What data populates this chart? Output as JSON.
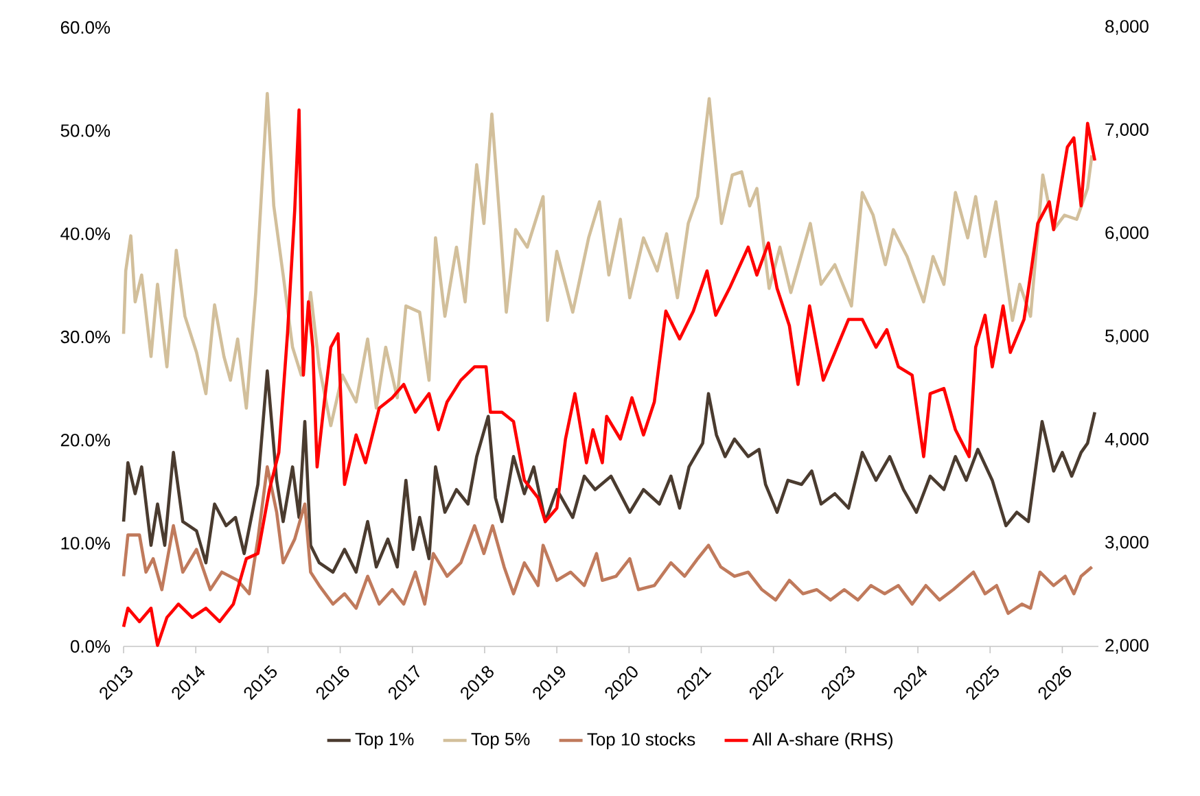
{
  "chart_data": {
    "type": "line",
    "legend": "bottom",
    "xlim": [
      2013,
      2026.5
    ],
    "xticks": [
      2013,
      2014,
      2015,
      2016,
      2017,
      2018,
      2019,
      2020,
      2021,
      2022,
      2023,
      2024,
      2025,
      2026
    ],
    "ylim": [
      0,
      60
    ],
    "yticks": [
      {
        "value": 0,
        "label": "0.0%"
      },
      {
        "value": 10,
        "label": "10.0%"
      },
      {
        "value": 20,
        "label": "20.0%"
      },
      {
        "value": 30,
        "label": "30.0%"
      },
      {
        "value": 40,
        "label": "40.0%"
      },
      {
        "value": 50,
        "label": "50.0%"
      },
      {
        "value": 60,
        "label": "60.0%"
      }
    ],
    "y2lim": [
      2000,
      8000
    ],
    "y2ticks": [
      {
        "value": 2000,
        "label": "2,000"
      },
      {
        "value": 3000,
        "label": "3,000"
      },
      {
        "value": 4000,
        "label": "4,000"
      },
      {
        "value": 5000,
        "label": "5,000"
      },
      {
        "value": 6000,
        "label": "6,000"
      },
      {
        "value": 7000,
        "label": "7,000"
      },
      {
        "value": 8000,
        "label": "8,000"
      }
    ],
    "series": [
      {
        "name": "Top 1%",
        "color": "#4a3b2f",
        "x": [
          2013.0,
          2013.06,
          2013.16,
          2013.25,
          2013.38,
          2013.47,
          2013.57,
          2013.69,
          2013.82,
          2014.01,
          2014.14,
          2014.26,
          2014.42,
          2014.55,
          2014.67,
          2014.86,
          2014.99,
          2015.12,
          2015.21,
          2015.34,
          2015.43,
          2015.51,
          2015.59,
          2015.71,
          2015.9,
          2016.06,
          2016.22,
          2016.38,
          2016.5,
          2016.66,
          2016.79,
          2016.91,
          2017.01,
          2017.1,
          2017.23,
          2017.32,
          2017.45,
          2017.61,
          2017.77,
          2017.89,
          2018.05,
          2018.15,
          2018.24,
          2018.4,
          2018.55,
          2018.68,
          2018.84,
          2019.0,
          2019.22,
          2019.38,
          2019.53,
          2019.75,
          2020.01,
          2020.2,
          2020.42,
          2020.58,
          2020.7,
          2020.83,
          2021.02,
          2021.1,
          2021.21,
          2021.33,
          2021.46,
          2021.65,
          2021.8,
          2021.89,
          2022.05,
          2022.2,
          2022.39,
          2022.53,
          2022.66,
          2022.85,
          2023.04,
          2023.23,
          2023.42,
          2023.61,
          2023.8,
          2023.98,
          2024.17,
          2024.36,
          2024.52,
          2024.67,
          2024.83,
          2025.03,
          2025.22,
          2025.37,
          2025.53,
          2025.72,
          2025.88,
          2026.0,
          2026.13,
          2026.26,
          2026.35,
          2026.45
        ],
        "values": [
          12.1,
          17.8,
          14.8,
          17.4,
          9.8,
          13.8,
          9.8,
          18.8,
          12.1,
          11.2,
          8.1,
          13.8,
          11.7,
          12.5,
          9.0,
          15.7,
          26.7,
          16.1,
          12.1,
          17.4,
          12.5,
          21.8,
          9.8,
          8.1,
          7.2,
          9.4,
          7.2,
          12.1,
          7.7,
          10.4,
          7.7,
          16.1,
          9.4,
          12.5,
          8.5,
          17.4,
          13.0,
          15.2,
          13.8,
          18.4,
          22.3,
          14.4,
          12.1,
          18.4,
          14.8,
          17.4,
          12.1,
          15.2,
          12.5,
          16.5,
          15.2,
          16.5,
          13.0,
          15.2,
          13.8,
          16.5,
          13.4,
          17.4,
          19.7,
          24.5,
          20.5,
          18.4,
          20.1,
          18.4,
          19.1,
          15.7,
          13.0,
          16.1,
          15.7,
          17.0,
          13.8,
          14.8,
          13.4,
          18.8,
          16.1,
          18.4,
          15.2,
          13.0,
          16.5,
          15.2,
          18.4,
          16.1,
          19.1,
          16.1,
          11.7,
          13.0,
          12.1,
          21.8,
          17.0,
          18.8,
          16.5,
          18.8,
          19.7,
          22.7
        ]
      },
      {
        "name": "Top 5%",
        "color": "#d2bf9b",
        "x": [
          2013.0,
          2013.03,
          2013.1,
          2013.16,
          2013.25,
          2013.38,
          2013.47,
          2013.6,
          2013.73,
          2013.85,
          2014.01,
          2014.14,
          2014.26,
          2014.39,
          2014.48,
          2014.58,
          2014.7,
          2014.83,
          2014.99,
          2015.08,
          2015.21,
          2015.34,
          2015.46,
          2015.59,
          2015.71,
          2015.87,
          2016.03,
          2016.22,
          2016.38,
          2016.5,
          2016.63,
          2016.79,
          2016.91,
          2017.1,
          2017.23,
          2017.32,
          2017.45,
          2017.61,
          2017.73,
          2017.89,
          2017.99,
          2018.1,
          2018.21,
          2018.3,
          2018.43,
          2018.59,
          2018.81,
          2018.87,
          2019.0,
          2019.22,
          2019.44,
          2019.59,
          2019.72,
          2019.88,
          2020.01,
          2020.2,
          2020.39,
          2020.52,
          2020.67,
          2020.82,
          2020.95,
          2021.11,
          2021.2,
          2021.28,
          2021.43,
          2021.56,
          2021.67,
          2021.77,
          2021.94,
          2022.09,
          2022.24,
          2022.51,
          2022.66,
          2022.85,
          2023.08,
          2023.23,
          2023.38,
          2023.55,
          2023.66,
          2023.85,
          2024.08,
          2024.21,
          2024.36,
          2024.52,
          2024.69,
          2024.8,
          2024.93,
          2025.08,
          2025.22,
          2025.31,
          2025.41,
          2025.56,
          2025.73,
          2025.88,
          2026.03,
          2026.2,
          2026.35,
          2026.41
        ],
        "values": [
          30.3,
          36.4,
          39.8,
          33.4,
          36.0,
          28.1,
          35.1,
          27.1,
          38.4,
          32.0,
          28.5,
          24.5,
          33.1,
          28.1,
          25.8,
          29.8,
          23.1,
          34.3,
          53.6,
          42.7,
          36.0,
          29.0,
          26.3,
          34.3,
          27.1,
          21.4,
          26.3,
          23.7,
          29.8,
          23.1,
          29.0,
          24.1,
          33.0,
          32.4,
          25.8,
          39.6,
          32.0,
          38.7,
          33.4,
          46.7,
          41.0,
          51.6,
          41.4,
          32.4,
          40.4,
          38.7,
          43.6,
          31.6,
          38.3,
          32.4,
          39.6,
          43.1,
          36.0,
          41.4,
          33.8,
          39.6,
          36.4,
          40.0,
          33.8,
          41.0,
          43.6,
          53.1,
          46.7,
          41.0,
          45.7,
          46.0,
          42.7,
          44.4,
          34.7,
          38.7,
          34.3,
          41.0,
          35.1,
          37.0,
          33.0,
          44.0,
          41.8,
          37.0,
          40.4,
          37.8,
          33.4,
          37.8,
          35.1,
          44.0,
          39.6,
          43.6,
          37.8,
          43.1,
          36.0,
          31.6,
          35.1,
          32.0,
          45.7,
          40.4,
          41.8,
          41.4,
          44.4,
          47.6
        ]
      },
      {
        "name": "Top 10 stocks",
        "color": "#c07a5c",
        "x": [
          2013.0,
          2013.06,
          2013.22,
          2013.31,
          2013.41,
          2013.53,
          2013.69,
          2013.82,
          2014.01,
          2014.2,
          2014.36,
          2014.58,
          2014.74,
          2014.86,
          2014.99,
          2015.12,
          2015.21,
          2015.37,
          2015.51,
          2015.59,
          2015.71,
          2015.9,
          2016.06,
          2016.22,
          2016.38,
          2016.54,
          2016.72,
          2016.88,
          2017.04,
          2017.17,
          2017.29,
          2017.48,
          2017.67,
          2017.86,
          2017.99,
          2018.11,
          2018.27,
          2018.4,
          2018.55,
          2018.74,
          2018.81,
          2019.0,
          2019.19,
          2019.38,
          2019.55,
          2019.63,
          2019.82,
          2020.01,
          2020.13,
          2020.35,
          2020.58,
          2020.77,
          2020.95,
          2021.1,
          2021.27,
          2021.46,
          2021.65,
          2021.84,
          2022.03,
          2022.22,
          2022.41,
          2022.6,
          2022.79,
          2022.98,
          2023.17,
          2023.35,
          2023.54,
          2023.73,
          2023.92,
          2024.11,
          2024.3,
          2024.49,
          2024.77,
          2024.93,
          2025.09,
          2025.25,
          2025.44,
          2025.56,
          2025.69,
          2025.88,
          2026.04,
          2026.16,
          2026.26,
          2026.41
        ],
        "values": [
          6.8,
          10.8,
          10.8,
          7.2,
          8.5,
          5.5,
          11.7,
          7.2,
          9.4,
          5.5,
          7.2,
          6.4,
          5.1,
          10.4,
          17.4,
          13.0,
          8.1,
          10.4,
          13.8,
          7.2,
          5.9,
          4.1,
          5.1,
          3.7,
          6.8,
          4.1,
          5.5,
          4.1,
          7.2,
          4.1,
          9.0,
          6.8,
          8.1,
          11.7,
          9.0,
          11.7,
          7.7,
          5.1,
          8.1,
          5.9,
          9.8,
          6.4,
          7.2,
          5.9,
          9.0,
          6.4,
          6.8,
          8.5,
          5.5,
          5.9,
          8.1,
          6.8,
          8.5,
          9.8,
          7.7,
          6.8,
          7.2,
          5.5,
          4.5,
          6.4,
          5.1,
          5.5,
          4.5,
          5.5,
          4.5,
          5.9,
          5.1,
          5.9,
          4.1,
          5.9,
          4.5,
          5.5,
          7.2,
          5.1,
          5.9,
          3.2,
          4.1,
          3.7,
          7.2,
          5.9,
          6.8,
          5.1,
          6.8,
          7.7
        ]
      },
      {
        "name": "All A-share (RHS)",
        "color": "#ff0000",
        "axis": "y2",
        "x": [
          2013.0,
          2013.06,
          2013.22,
          2013.38,
          2013.47,
          2013.6,
          2013.76,
          2013.95,
          2014.14,
          2014.33,
          2014.52,
          2014.7,
          2014.86,
          2015.02,
          2015.15,
          2015.27,
          2015.37,
          2015.43,
          2015.49,
          2015.56,
          2015.62,
          2015.68,
          2015.78,
          2015.87,
          2015.97,
          2016.06,
          2016.22,
          2016.35,
          2016.54,
          2016.72,
          2016.88,
          2017.04,
          2017.23,
          2017.36,
          2017.48,
          2017.67,
          2017.86,
          2018.02,
          2018.08,
          2018.24,
          2018.4,
          2018.55,
          2018.74,
          2018.84,
          2019.0,
          2019.12,
          2019.25,
          2019.41,
          2019.5,
          2019.63,
          2019.69,
          2019.88,
          2020.04,
          2020.2,
          2020.35,
          2020.51,
          2020.7,
          2020.89,
          2021.08,
          2021.2,
          2021.39,
          2021.65,
          2021.77,
          2021.93,
          2022.05,
          2022.22,
          2022.34,
          2022.5,
          2022.69,
          2022.85,
          2023.04,
          2023.23,
          2023.42,
          2023.57,
          2023.73,
          2023.92,
          2024.08,
          2024.17,
          2024.36,
          2024.52,
          2024.71,
          2024.8,
          2024.93,
          2025.03,
          2025.18,
          2025.28,
          2025.47,
          2025.56,
          2025.66,
          2025.82,
          2025.88,
          2026.07,
          2026.16,
          2026.26,
          2026.35,
          2026.45
        ],
        "values": [
          2190,
          2370,
          2240,
          2370,
          2010,
          2280,
          2410,
          2280,
          2370,
          2240,
          2410,
          2850,
          2900,
          3520,
          3880,
          5030,
          6230,
          7200,
          4630,
          5340,
          4900,
          3740,
          4370,
          4900,
          5030,
          3570,
          4050,
          3780,
          4310,
          4410,
          4540,
          4270,
          4450,
          4100,
          4370,
          4580,
          4710,
          4710,
          4270,
          4270,
          4180,
          3610,
          3440,
          3210,
          3340,
          4010,
          4450,
          3780,
          4100,
          3780,
          4230,
          4010,
          4410,
          4050,
          4370,
          5250,
          4980,
          5250,
          5640,
          5210,
          5470,
          5870,
          5600,
          5910,
          5470,
          5110,
          4540,
          5300,
          4580,
          4850,
          5170,
          5170,
          4900,
          5070,
          4710,
          4630,
          3840,
          4450,
          4500,
          4100,
          3840,
          4900,
          5210,
          4710,
          5300,
          4850,
          5170,
          5600,
          6100,
          6310,
          6040,
          6840,
          6930,
          6270,
          7070,
          6710
        ]
      }
    ]
  }
}
